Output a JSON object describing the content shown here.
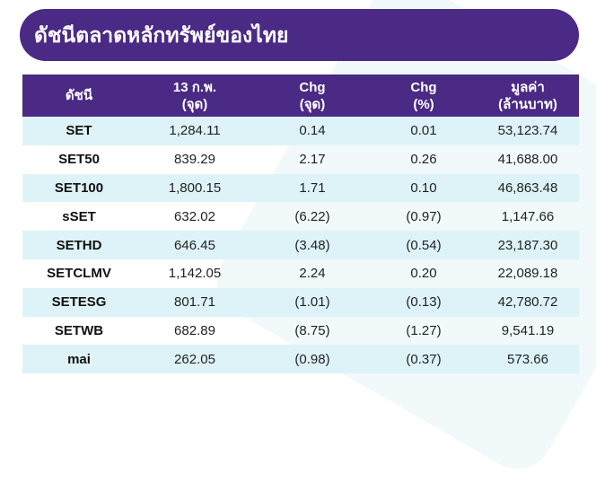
{
  "title": "ดัชนีตลาดหลักทรัพย์ของไทย",
  "headers": [
    {
      "line1": "ดัชนี",
      "line2": ""
    },
    {
      "line1": "13 ก.พ.",
      "line2": "(จุด)"
    },
    {
      "line1": "Chg",
      "line2": "(จุด)"
    },
    {
      "line1": "Chg",
      "line2": "(%)"
    },
    {
      "line1": "มูลค่า",
      "line2": "(ล้านบาท)"
    }
  ],
  "rows": [
    [
      "SET",
      "1,284.11",
      "0.14",
      "0.01",
      "53,123.74"
    ],
    [
      "SET50",
      "839.29",
      "2.17",
      "0.26",
      "41,688.00"
    ],
    [
      "SET100",
      "1,800.15",
      "1.71",
      "0.10",
      "46,863.48"
    ],
    [
      "sSET",
      "632.02",
      "(6.22)",
      "(0.97)",
      "1,147.66"
    ],
    [
      "SETHD",
      "646.45",
      "(3.48)",
      "(0.54)",
      "23,187.30"
    ],
    [
      "SETCLMV",
      "1,142.05",
      "2.24",
      "0.20",
      "22,089.18"
    ],
    [
      "SETESG",
      "801.71",
      "(1.01)",
      "(0.13)",
      "42,780.72"
    ],
    [
      "SETWB",
      "682.89",
      "(8.75)",
      "(1.27)",
      "9,541.19"
    ],
    [
      "mai",
      "262.05",
      "(0.98)",
      "(0.37)",
      "573.66"
    ]
  ],
  "colors": {
    "header": "#4b2a86",
    "row_alt": "#def3f7"
  }
}
